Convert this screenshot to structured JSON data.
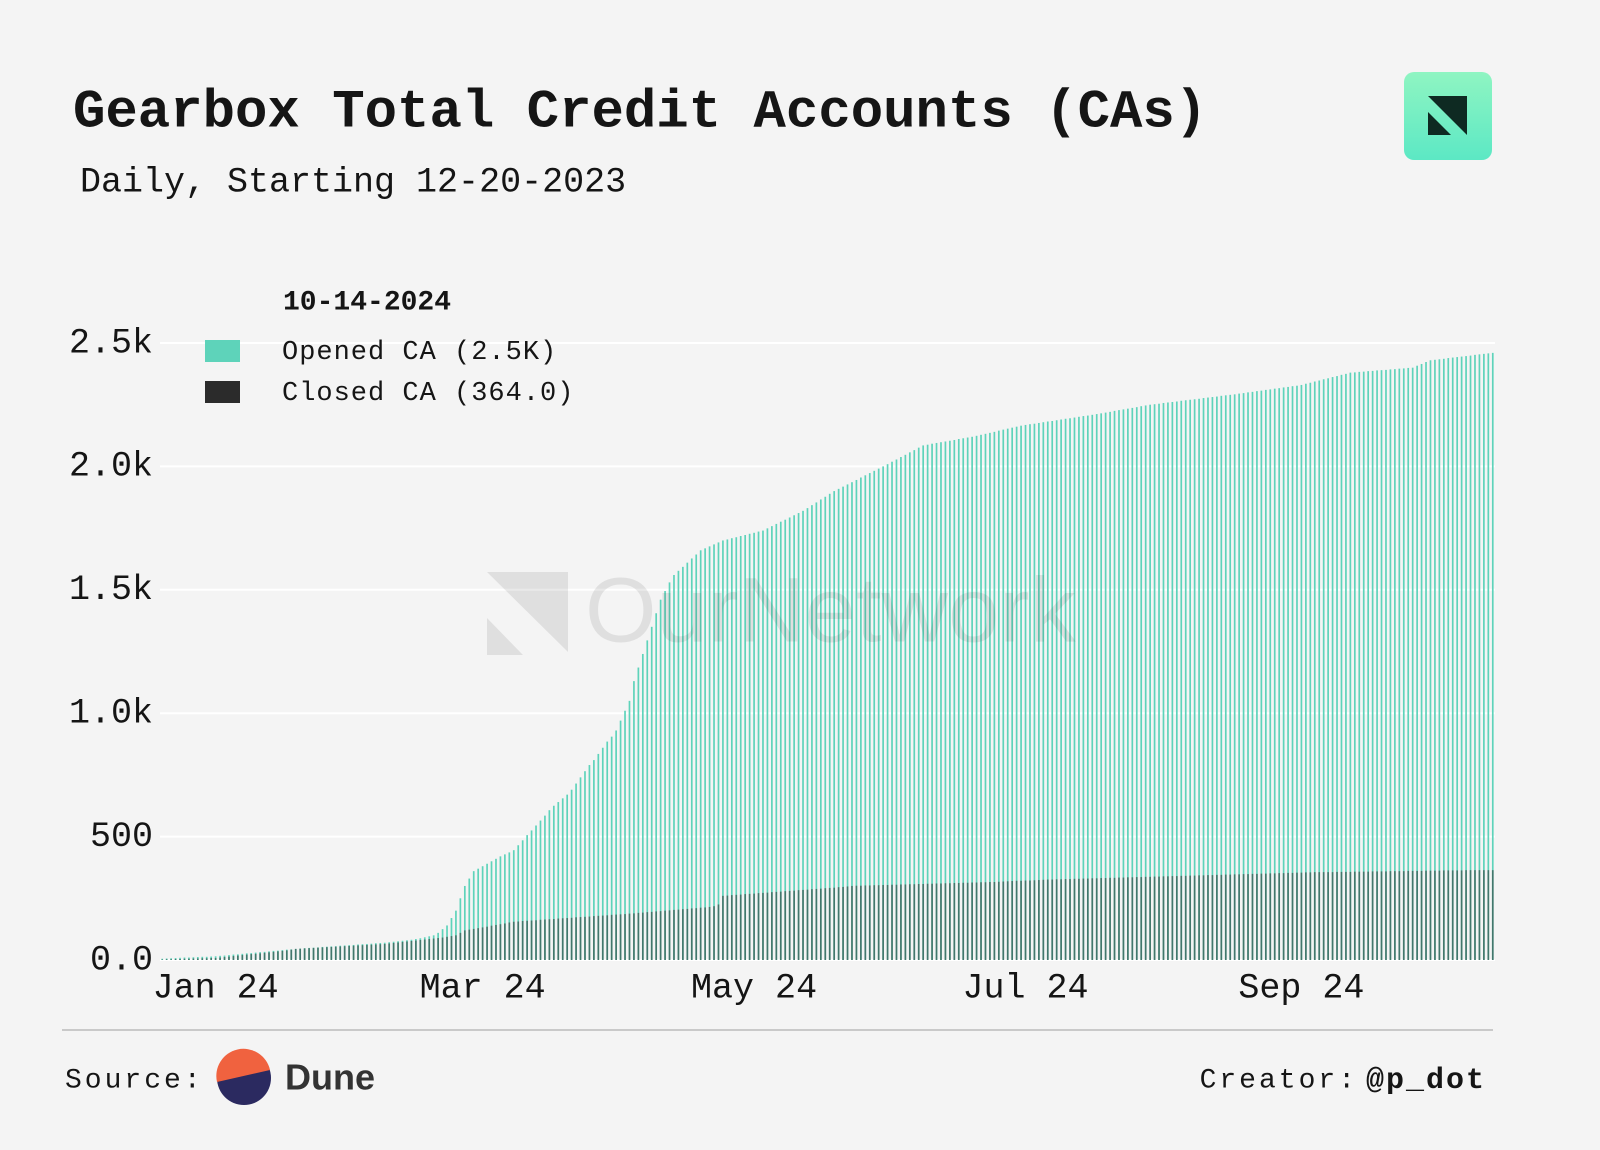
{
  "chart_data": {
    "type": "bar",
    "title": "Gearbox Total Credit Accounts (CAs)",
    "subtitle": "Daily, Starting 12-20-2023",
    "legend_title": "10-14-2024",
    "legend_position": "top-left",
    "watermark": "OurNetwork",
    "source_label": "Source:",
    "source": "Dune",
    "creator_label": "Creator:",
    "creator": "@p_dot",
    "grid": true,
    "ylim": [
      0,
      2500
    ],
    "yticks": [
      {
        "value": 0,
        "label": "0.0"
      },
      500,
      {
        "value": 1000,
        "label": "1.0k"
      },
      {
        "value": 1500,
        "label": "1.5k"
      },
      {
        "value": 2000,
        "label": "2.0k"
      },
      {
        "value": 2500,
        "label": "2.5k"
      }
    ],
    "categories": [
      null,
      null,
      null,
      null,
      null,
      null,
      null,
      null,
      null,
      null,
      null,
      null,
      "Jan 24",
      null,
      null,
      null,
      null,
      null,
      null,
      null,
      null,
      null,
      null,
      null,
      null,
      null,
      null,
      null,
      null,
      null,
      null,
      null,
      null,
      null,
      null,
      null,
      null,
      null,
      null,
      null,
      null,
      null,
      null,
      null,
      null,
      null,
      null,
      null,
      null,
      null,
      null,
      null,
      null,
      null,
      null,
      null,
      null,
      null,
      null,
      null,
      null,
      null,
      null,
      null,
      null,
      null,
      null,
      null,
      null,
      null,
      null,
      null,
      "Mar 24",
      null,
      null,
      null,
      null,
      null,
      null,
      null,
      null,
      null,
      null,
      null,
      null,
      null,
      null,
      null,
      null,
      null,
      null,
      null,
      null,
      null,
      null,
      null,
      null,
      null,
      null,
      null,
      null,
      null,
      null,
      null,
      null,
      null,
      null,
      null,
      null,
      null,
      null,
      null,
      null,
      null,
      null,
      null,
      null,
      null,
      null,
      null,
      null,
      null,
      null,
      null,
      null,
      null,
      null,
      null,
      null,
      null,
      null,
      null,
      null,
      "May 24",
      null,
      null,
      null,
      null,
      null,
      null,
      null,
      null,
      null,
      null,
      null,
      null,
      null,
      null,
      null,
      null,
      null,
      null,
      null,
      null,
      null,
      null,
      null,
      null,
      null,
      null,
      null,
      null,
      null,
      null,
      null,
      null,
      null,
      null,
      null,
      null,
      null,
      null,
      null,
      null,
      null,
      null,
      null,
      null,
      null,
      null,
      null,
      null,
      null,
      null,
      null,
      null,
      null,
      null,
      null,
      null,
      null,
      null,
      null,
      null,
      "Jul 24",
      null,
      null,
      null,
      null,
      null,
      null,
      null,
      null,
      null,
      null,
      null,
      null,
      null,
      null,
      null,
      null,
      null,
      null,
      null,
      null,
      null,
      null,
      null,
      null,
      null,
      null,
      null,
      null,
      null,
      null,
      null,
      null,
      null,
      null,
      null,
      null,
      null,
      null,
      null,
      null,
      null,
      null,
      null,
      null,
      null,
      null,
      null,
      null,
      null,
      null,
      null,
      null,
      null,
      null,
      null,
      null,
      null,
      null,
      null,
      null,
      null,
      "Sep 24",
      null,
      null,
      null,
      null,
      null,
      null,
      null,
      null,
      null,
      null,
      null,
      null,
      null,
      null,
      null,
      null,
      null,
      null,
      null,
      null,
      null,
      null,
      null,
      null,
      null,
      null,
      null,
      null,
      null,
      null,
      null,
      null,
      null,
      null,
      null,
      null,
      null,
      null,
      null,
      null,
      null,
      null,
      null
    ],
    "series": [
      {
        "name": "Opened CA (2.5K)",
        "color": "#5ed3ba",
        "values": [
          5,
          6,
          7,
          8,
          9,
          10,
          10,
          11,
          12,
          13,
          13,
          14,
          15,
          17,
          18,
          20,
          22,
          23,
          25,
          27,
          28,
          30,
          32,
          33,
          35,
          37,
          38,
          40,
          42,
          43,
          45,
          46,
          48,
          49,
          50,
          51,
          53,
          54,
          55,
          56,
          58,
          59,
          60,
          61,
          63,
          64,
          65,
          66,
          68,
          69,
          70,
          72,
          74,
          76,
          78,
          80,
          82,
          85,
          88,
          92,
          96,
          100,
          110,
          125,
          140,
          170,
          200,
          250,
          300,
          330,
          360,
          370,
          380,
          390,
          400,
          410,
          420,
          428,
          436,
          445,
          465,
          485,
          506,
          525,
          545,
          565,
          585,
          607,
          625,
          640,
          655,
          670,
          690,
          715,
          740,
          765,
          790,
          810,
          835,
          860,
          885,
          905,
          930,
          970,
          1010,
          1050,
          1130,
          1185,
          1240,
          1295,
          1350,
          1405,
          1460,
          1495,
          1530,
          1560,
          1577,
          1593,
          1610,
          1627,
          1643,
          1660,
          1668,
          1676,
          1684,
          1692,
          1700,
          1704,
          1709,
          1713,
          1718,
          1722,
          1727,
          1731,
          1736,
          1740,
          1749,
          1758,
          1767,
          1776,
          1784,
          1793,
          1802,
          1811,
          1820,
          1831,
          1843,
          1854,
          1866,
          1877,
          1889,
          1900,
          1909,
          1918,
          1927,
          1936,
          1945,
          1955,
          1964,
          1973,
          1982,
          1991,
          2000,
          2009,
          2019,
          2028,
          2038,
          2047,
          2057,
          2066,
          2076,
          2085,
          2088,
          2092,
          2095,
          2098,
          2101,
          2104,
          2107,
          2111,
          2114,
          2117,
          2120,
          2124,
          2128,
          2132,
          2136,
          2140,
          2145,
          2149,
          2153,
          2157,
          2161,
          2165,
          2168,
          2171,
          2173,
          2176,
          2179,
          2182,
          2184,
          2187,
          2190,
          2193,
          2195,
          2198,
          2201,
          2204,
          2206,
          2209,
          2212,
          2215,
          2218,
          2221,
          2225,
          2228,
          2231,
          2234,
          2237,
          2240,
          2244,
          2247,
          2250,
          2252,
          2254,
          2257,
          2259,
          2261,
          2263,
          2266,
          2268,
          2270,
          2272,
          2274,
          2277,
          2279,
          2281,
          2283,
          2286,
          2288,
          2290,
          2292,
          2295,
          2297,
          2300,
          2302,
          2305,
          2307,
          2310,
          2312,
          2315,
          2317,
          2320,
          2322,
          2325,
          2327,
          2330,
          2335,
          2339,
          2344,
          2348,
          2353,
          2357,
          2362,
          2366,
          2371,
          2375,
          2380,
          2381,
          2383,
          2384,
          2386,
          2387,
          2389,
          2390,
          2391,
          2393,
          2394,
          2396,
          2397,
          2399,
          2400,
          2408,
          2415,
          2423,
          2430,
          2432,
          2434,
          2436,
          2439,
          2441,
          2443,
          2445,
          2447,
          2449,
          2452,
          2454,
          2456,
          2458,
          2460
        ]
      },
      {
        "name": "Closed CA (364.0)",
        "color": "#2b2b2b",
        "values": [
          2,
          3,
          3,
          4,
          4,
          5,
          5,
          6,
          6,
          7,
          7,
          8,
          8,
          10,
          12,
          14,
          16,
          18,
          20,
          22,
          24,
          25,
          27,
          29,
          31,
          33,
          35,
          37,
          39,
          42,
          45,
          46,
          47,
          48,
          49,
          50,
          51,
          52,
          53,
          54,
          55,
          56,
          57,
          58,
          59,
          60,
          61,
          62,
          63,
          64,
          65,
          67,
          69,
          71,
          73,
          75,
          77,
          79,
          81,
          83,
          85,
          87,
          89,
          91,
          94,
          97,
          100,
          110,
          120,
          123,
          126,
          129,
          132,
          135,
          139,
          142,
          145,
          148,
          152,
          155,
          156,
          158,
          159,
          160,
          161,
          163,
          164,
          165,
          166,
          168,
          169,
          170,
          171,
          173,
          174,
          175,
          176,
          178,
          179,
          180,
          181,
          183,
          184,
          185,
          186,
          188,
          189,
          191,
          192,
          194,
          195,
          197,
          198,
          200,
          201,
          203,
          204,
          206,
          207,
          209,
          210,
          212,
          213,
          215,
          218,
          225,
          260,
          261,
          263,
          264,
          265,
          267,
          268,
          269,
          271,
          272,
          273,
          275,
          276,
          277,
          279,
          280,
          281,
          283,
          284,
          285,
          287,
          288,
          289,
          291,
          292,
          293,
          295,
          296,
          298,
          300,
          301,
          301,
          302,
          302,
          303,
          303,
          304,
          304,
          305,
          305,
          306,
          306,
          307,
          307,
          308,
          308,
          309,
          309,
          310,
          310,
          311,
          311,
          312,
          312,
          313,
          313,
          314,
          314,
          315,
          315,
          316,
          316,
          317,
          318,
          319,
          320,
          321,
          321,
          322,
          322,
          323,
          324,
          325,
          326,
          326,
          327,
          327,
          328,
          328,
          329,
          329,
          330,
          330,
          331,
          331,
          332,
          332,
          333,
          333,
          334,
          334,
          335,
          335,
          336,
          336,
          337,
          337,
          338,
          338,
          339,
          339,
          340,
          340,
          341,
          341,
          342,
          342,
          343,
          343,
          344,
          344,
          345,
          345,
          346,
          346,
          347,
          347,
          348,
          348,
          349,
          349,
          350,
          350,
          351,
          351,
          352,
          352,
          353,
          353,
          354,
          354,
          355,
          355,
          356,
          356,
          356,
          356,
          356,
          357,
          357,
          357,
          357,
          358,
          358,
          358,
          358,
          359,
          359,
          359,
          359,
          360,
          360,
          360,
          360,
          361,
          361,
          361,
          361,
          362,
          362,
          362,
          362,
          363,
          363,
          363,
          363,
          363,
          364,
          364,
          364,
          364,
          364,
          364,
          364
        ]
      }
    ]
  }
}
